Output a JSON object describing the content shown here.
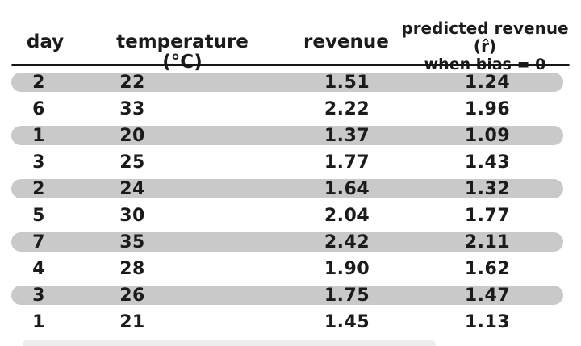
{
  "table": {
    "header": {
      "day": "day",
      "temperature": "temperature (°C)",
      "revenue": "revenue",
      "predicted_line1": "predicted revenue (r̂)",
      "predicted_line2": "when bias = 0"
    },
    "rows": [
      {
        "day": "2",
        "temperature": "22",
        "revenue": "1.51",
        "predicted": "1.24",
        "highlighted": true
      },
      {
        "day": "6",
        "temperature": "33",
        "revenue": "2.22",
        "predicted": "1.96",
        "highlighted": false
      },
      {
        "day": "1",
        "temperature": "20",
        "revenue": "1.37",
        "predicted": "1.09",
        "highlighted": true
      },
      {
        "day": "3",
        "temperature": "25",
        "revenue": "1.77",
        "predicted": "1.43",
        "highlighted": false
      },
      {
        "day": "2",
        "temperature": "24",
        "revenue": "1.64",
        "predicted": "1.32",
        "highlighted": true
      },
      {
        "day": "5",
        "temperature": "30",
        "revenue": "2.04",
        "predicted": "1.77",
        "highlighted": false
      },
      {
        "day": "7",
        "temperature": "35",
        "revenue": "2.42",
        "predicted": "2.11",
        "highlighted": true
      },
      {
        "day": "4",
        "temperature": "28",
        "revenue": "1.90",
        "predicted": "1.62",
        "highlighted": false
      },
      {
        "day": "3",
        "temperature": "26",
        "revenue": "1.75",
        "predicted": "1.47",
        "highlighted": true
      },
      {
        "day": "1",
        "temperature": "21",
        "revenue": "1.45",
        "predicted": "1.13",
        "highlighted": false
      }
    ]
  },
  "chart_data": {
    "type": "table",
    "columns": [
      "day",
      "temperature (°C)",
      "revenue",
      "predicted revenue (r̂) when bias = 0"
    ],
    "rows": [
      [
        2,
        22,
        1.51,
        1.24
      ],
      [
        6,
        33,
        2.22,
        1.96
      ],
      [
        1,
        20,
        1.37,
        1.09
      ],
      [
        3,
        25,
        1.77,
        1.43
      ],
      [
        2,
        24,
        1.64,
        1.32
      ],
      [
        5,
        30,
        2.04,
        1.77
      ],
      [
        7,
        35,
        2.42,
        2.11
      ],
      [
        4,
        28,
        1.9,
        1.62
      ],
      [
        3,
        26,
        1.75,
        1.47
      ],
      [
        1,
        21,
        1.45,
        1.13
      ]
    ],
    "highlighted_row_indices": [
      0,
      2,
      4,
      6,
      8
    ],
    "legend_position": "none",
    "grid": false
  },
  "style": {
    "highlight_color": "#c9c9c9",
    "ink_color": "#1b1b1b",
    "background_color": "#ffffff"
  }
}
